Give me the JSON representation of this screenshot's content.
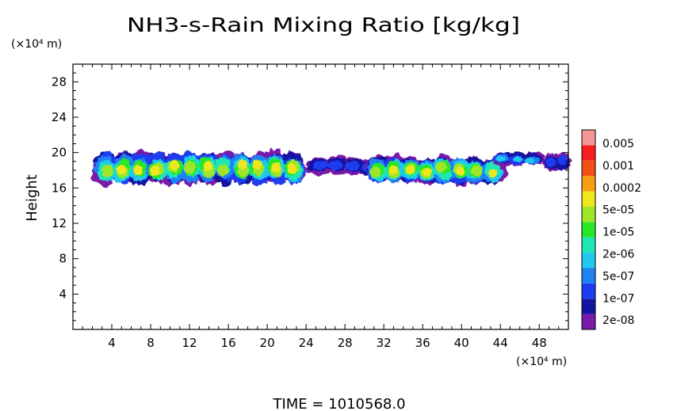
{
  "chart_data": {
    "type": "heatmap",
    "title": "NH3-s-Rain Mixing Ratio [kg/kg]",
    "xlabel": "",
    "ylabel": "Height",
    "x_unit": "(×10⁴ m)",
    "y_unit": "(×10⁴ m)",
    "xlim": [
      0,
      51
    ],
    "ylim": [
      0,
      30
    ],
    "xticks": [
      "4",
      "8",
      "12",
      "16",
      "20",
      "24",
      "28",
      "32",
      "36",
      "40",
      "44",
      "48"
    ],
    "yticks": [
      "4",
      "8",
      "12",
      "16",
      "20",
      "24",
      "28"
    ],
    "footer": "TIME = 1010568.0",
    "colorbar": {
      "labels": [
        "0.005",
        "0.001",
        "0.0002",
        "5e-05",
        "1e-05",
        "2e-06",
        "5e-07",
        "1e-07",
        "2e-08"
      ],
      "colors_bottom_to_top": [
        "#7a1aa8",
        "#1414a0",
        "#1e3cf0",
        "#1e82f5",
        "#1ec8f0",
        "#1ee6b4",
        "#28e628",
        "#a0e628",
        "#f0e61e",
        "#f5a014",
        "#f05014",
        "#f51e1e",
        "#f59696"
      ]
    },
    "field_regions": [
      {
        "x": [
          2.5,
          23.5
        ],
        "y": [
          16.5,
          20.0
        ],
        "peak": "2e-04"
      },
      {
        "x": [
          24.5,
          31.5
        ],
        "y": [
          17.5,
          19.5
        ],
        "peak": "1e-07"
      },
      {
        "x": [
          30.5,
          44.0
        ],
        "y": [
          16.5,
          19.5
        ],
        "peak": "2e-04"
      },
      {
        "x": [
          43.5,
          48.0
        ],
        "y": [
          18.5,
          20.0
        ],
        "peak": "1e-06"
      },
      {
        "x": [
          48.5,
          51.0
        ],
        "y": [
          18.0,
          20.0
        ],
        "peak": "1e-07"
      }
    ]
  }
}
